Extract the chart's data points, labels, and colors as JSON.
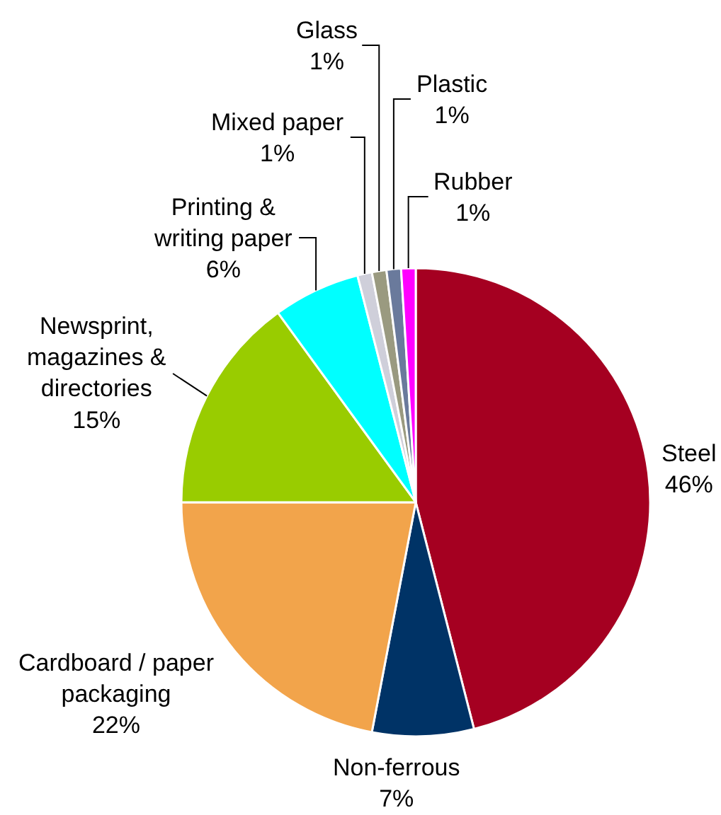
{
  "chart_data": {
    "type": "pie",
    "categories": [
      "Steel",
      "Non-ferrous",
      "Cardboard / paper packaging",
      "Newsprint, magazines & directories",
      "Printing & writing paper",
      "Mixed paper",
      "Glass",
      "Plastic",
      "Rubber"
    ],
    "values": [
      46,
      7,
      22,
      15,
      6,
      1,
      1,
      1,
      1
    ],
    "colors": [
      "#a50021",
      "#003366",
      "#f2a44b",
      "#99cc00",
      "#00ffff",
      "#cfcfda",
      "#9a9a80",
      "#6a7a9c",
      "#ff00ff"
    ],
    "value_labels": [
      "46%",
      "7%",
      "22%",
      "15%",
      "6%",
      "1%",
      "1%",
      "1%",
      "1%"
    ],
    "legend": false
  }
}
